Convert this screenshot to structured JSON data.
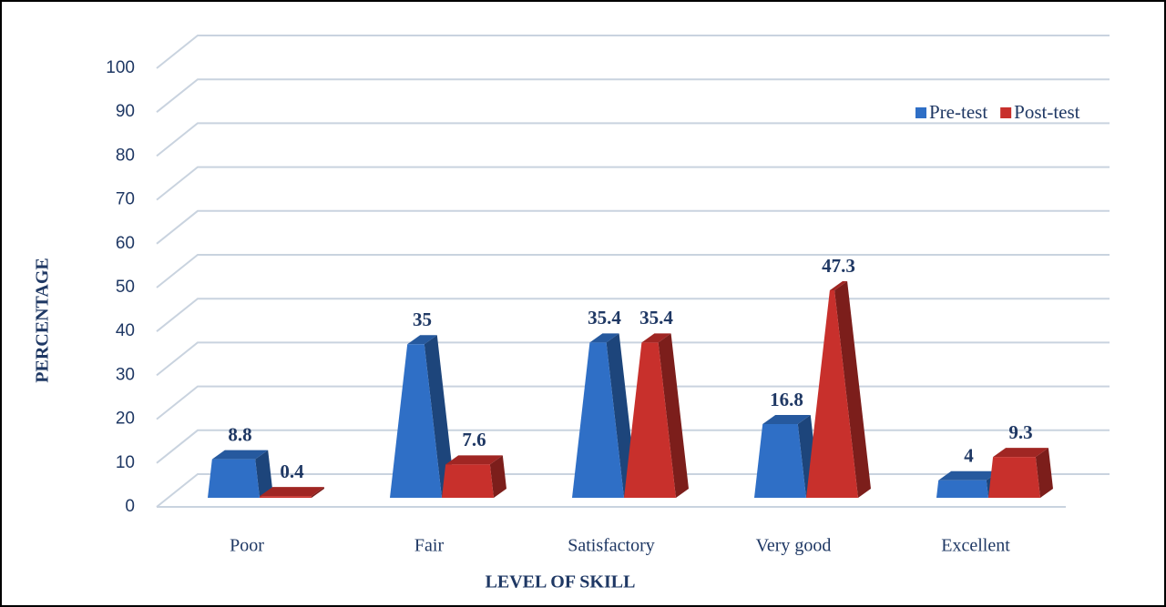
{
  "chart_data": {
    "type": "bar",
    "x_label": "LEVEL OF SKILL",
    "y_label": "PERCENTAGE",
    "categories": [
      "Poor",
      "Fair",
      "Satisfactory",
      "Very good",
      "Excellent"
    ],
    "series": [
      {
        "name": "Pre-test",
        "color": "#2f6fc6",
        "values": [
          8.8,
          35,
          35.4,
          16.8,
          4
        ]
      },
      {
        "name": "Post-test",
        "color": "#c8302c",
        "values": [
          0.4,
          7.6,
          35.4,
          47.3,
          9.3
        ]
      }
    ],
    "ylim": [
      0,
      100
    ],
    "yticks": [
      0,
      10,
      20,
      30,
      40,
      50,
      60,
      70,
      80,
      90,
      100
    ],
    "grid": true,
    "legend": "upper right"
  }
}
